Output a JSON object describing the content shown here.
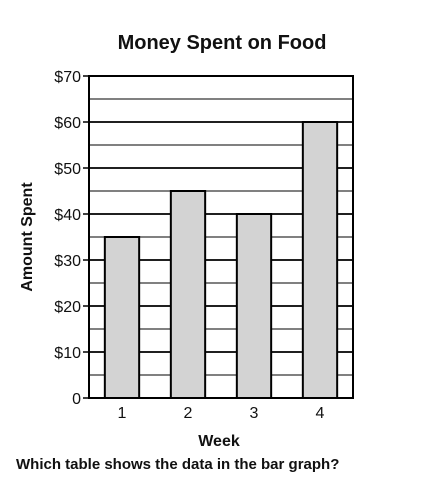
{
  "chart_data": {
    "type": "bar",
    "title": "Money Spent on Food",
    "xlabel": "Week",
    "ylabel": "Amount Spent",
    "categories": [
      "1",
      "2",
      "3",
      "4"
    ],
    "values": [
      35,
      45,
      40,
      60
    ],
    "ylim": [
      0,
      70
    ],
    "yticks": [
      "0",
      "$10",
      "$20",
      "$30",
      "$40",
      "$50",
      "$60",
      "$70"
    ],
    "grid": true,
    "bar_color": "#d3d3d3",
    "edge_color": "#000000"
  },
  "question": "Which table shows the data in the bar graph?"
}
